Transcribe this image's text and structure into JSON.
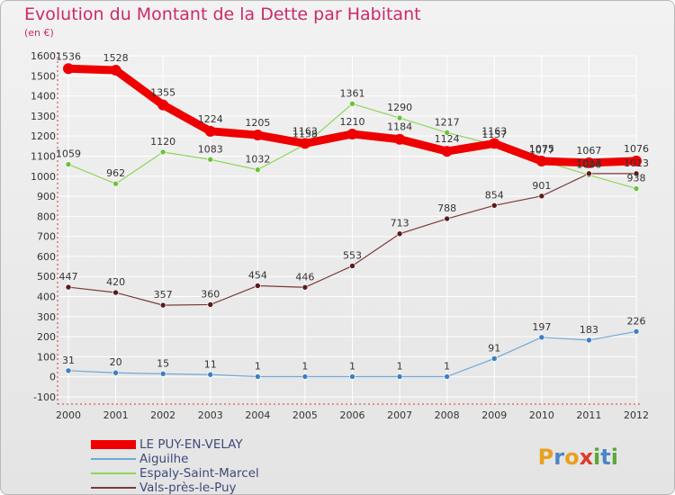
{
  "title": "Evolution du Montant de la Dette par Habitant",
  "subtitle": "(en €)",
  "logo": {
    "letters": [
      "P",
      "r",
      "o",
      "x",
      "i",
      "t",
      "i"
    ],
    "colors": [
      "#e8a020",
      "#4a86c8",
      "#e8a020",
      "#e03a2a",
      "#5aa83a",
      "#4a86c8",
      "#5aa83a"
    ]
  },
  "chart_data": {
    "type": "line",
    "x": [
      "2000",
      "2001",
      "2002",
      "2003",
      "2004",
      "2005",
      "2006",
      "2007",
      "2008",
      "2009",
      "2010",
      "2011",
      "2012"
    ],
    "ylim": [
      -100,
      1600
    ],
    "yticks": [
      -100,
      0,
      100,
      200,
      300,
      400,
      500,
      600,
      700,
      800,
      900,
      1000,
      1100,
      1200,
      1300,
      1400,
      1500,
      1600
    ],
    "grid": true,
    "legend_position": "bottom-left",
    "series": [
      {
        "name": "LE PUY-EN-VELAY",
        "color": "#ee0000",
        "marker": "#ee0000",
        "values": [
          1536,
          1528,
          1355,
          1224,
          1205,
          1163,
          1210,
          1184,
          1124,
          1163,
          1075,
          1067,
          1076
        ]
      },
      {
        "name": "Aiguilhe",
        "color": "#6fa8d8",
        "marker": "#3d7fc0",
        "values": [
          31,
          20,
          15,
          11,
          1,
          1,
          1,
          1,
          1,
          91,
          197,
          183,
          226
        ]
      },
      {
        "name": "Espaly-Saint-Marcel",
        "color": "#8fd55a",
        "marker": "#6cc23a",
        "values": [
          1059,
          962,
          1120,
          1083,
          1032,
          1158,
          1361,
          1290,
          1217,
          1157,
          1077,
          1006,
          938
        ]
      },
      {
        "name": "Vals-près-le-Puy",
        "color": "#7a3a3a",
        "marker": "#5a1a1a",
        "values": [
          447,
          420,
          357,
          360,
          454,
          446,
          553,
          713,
          788,
          854,
          901,
          1013,
          1013
        ]
      }
    ]
  }
}
